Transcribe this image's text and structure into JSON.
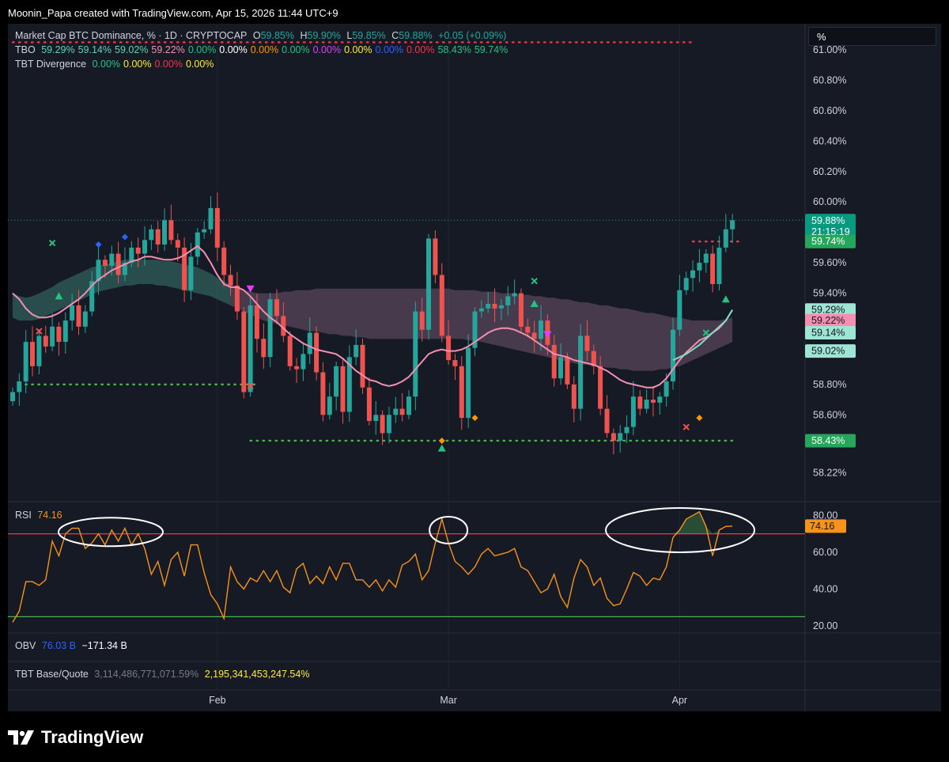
{
  "header": {
    "created_by": "Moonin_Papa created with TradingView.com, Apr 15, 2026 11:44 UTC+9"
  },
  "symbol_legend": {
    "name": "Market Cap BTC Dominance, % · 1D · CRYPTOCAP",
    "o_label": "O",
    "o_value": "59.85%",
    "h_label": "H",
    "h_value": "59.90%",
    "l_label": "L",
    "l_value": "59.85%",
    "c_label": "C",
    "c_value": "59.88%",
    "change": "+0.05 (+0.09%)"
  },
  "tbo_legend": {
    "name": "TBO",
    "values": [
      {
        "text": "59.29%",
        "color": "#5ed3b8"
      },
      {
        "text": "59.14%",
        "color": "#5ed3b8"
      },
      {
        "text": "59.02%",
        "color": "#5ed3b8"
      },
      {
        "text": "59.22%",
        "color": "#f48fb1"
      },
      {
        "text": "0.00%",
        "color": "#26c281"
      },
      {
        "text": "0.00%",
        "color": "#ffffff"
      },
      {
        "text": "0.00%",
        "color": "#ff9800"
      },
      {
        "text": "0.00%",
        "color": "#26c281"
      },
      {
        "text": "0.00%",
        "color": "#e040fb"
      },
      {
        "text": "0.00%",
        "color": "#ffeb3b"
      },
      {
        "text": "0.00%",
        "color": "#2962ff"
      },
      {
        "text": "0.00%",
        "color": "#f23645"
      },
      {
        "text": "58.43%",
        "color": "#26c281"
      },
      {
        "text": "59.74%",
        "color": "#26c281"
      }
    ]
  },
  "divergence_legend": {
    "name": "TBT Divergence",
    "values": [
      {
        "text": "0.00%",
        "color": "#26c281"
      },
      {
        "text": "0.00%",
        "color": "#ffeb3b"
      },
      {
        "text": "0.00%",
        "color": "#f23645"
      },
      {
        "text": "0.00%",
        "color": "#ffeb3b"
      }
    ]
  },
  "scale_mode_label": "%",
  "price_axis": {
    "ticks": [
      "61.00%",
      "60.80%",
      "60.60%",
      "60.40%",
      "60.20%",
      "60.00%",
      "59.60%",
      "59.40%",
      "58.80%",
      "58.60%",
      "58.22%"
    ],
    "tick_values": [
      61.0,
      60.8,
      60.6,
      60.4,
      60.2,
      60.0,
      59.6,
      59.4,
      58.8,
      58.6,
      58.22
    ],
    "badges": [
      {
        "text": "59.88%",
        "sub": "21:15:19",
        "value": 59.88,
        "bg": "#089981",
        "fg": "#ffffff"
      },
      {
        "text": "59.74%",
        "value": 59.74,
        "bg": "#26a65b",
        "fg": "#ffffff"
      },
      {
        "text": "59.29%",
        "value": 59.29,
        "bg": "#9ee6d3",
        "fg": "#131722"
      },
      {
        "text": "59.22%",
        "value": 59.22,
        "bg": "#f48fb1",
        "fg": "#131722"
      },
      {
        "text": "59.14%",
        "value": 59.14,
        "bg": "#9ee6d3",
        "fg": "#131722"
      },
      {
        "text": "59.02%",
        "value": 59.02,
        "bg": "#9ee6d3",
        "fg": "#131722"
      },
      {
        "text": "58.43%",
        "value": 58.43,
        "bg": "#26a65b",
        "fg": "#ffffff"
      }
    ]
  },
  "rsi_panel": {
    "name": "RSI",
    "value": "74.16",
    "ticks": [
      "80.00",
      "60.00",
      "40.00",
      "20.00"
    ],
    "tick_values": [
      80,
      60,
      40,
      20
    ],
    "badge": "74.16",
    "upper_band": 70,
    "lower_band": 25
  },
  "obv_panel": {
    "name": "OBV",
    "v1": "76.03 B",
    "v2": "−171.34 B"
  },
  "base_quote_panel": {
    "name": "TBT Base/Quote",
    "v1": "3,114,486,771,071.59%",
    "v2": "2,195,341,453,247.54%"
  },
  "time_axis": {
    "labels": [
      "Feb",
      "Mar",
      "Apr"
    ],
    "label_bar_index": [
      31,
      66,
      101
    ]
  },
  "brand": {
    "name": "TradingView"
  },
  "colors": {
    "up": "#26a69a",
    "down": "#ef5350",
    "bg": "#161a25",
    "rsi": "#f7931a",
    "pink_line": "#f48fb1",
    "teal_line": "#7be0c6"
  },
  "chart_data": [
    {
      "type": "candlestick",
      "title": "Market Cap BTC Dominance, % · 1D · CRYPTOCAP",
      "ylim": [
        58.05,
        61.12
      ],
      "closes": [
        58.75,
        58.82,
        59.08,
        58.92,
        59.12,
        59.05,
        59.18,
        59.08,
        59.22,
        59.32,
        59.18,
        59.28,
        59.48,
        59.62,
        59.58,
        59.66,
        59.52,
        59.6,
        59.7,
        59.66,
        59.75,
        59.82,
        59.72,
        59.88,
        59.75,
        59.7,
        59.42,
        59.64,
        59.8,
        59.82,
        59.96,
        59.7,
        59.52,
        59.45,
        59.28,
        58.75,
        59.32,
        59.1,
        58.98,
        59.36,
        59.25,
        59.12,
        58.92,
        58.9,
        59.0,
        59.14,
        58.88,
        58.6,
        58.72,
        58.92,
        58.62,
        58.98,
        59.06,
        58.78,
        58.56,
        58.6,
        58.48,
        58.6,
        58.64,
        58.6,
        58.72,
        59.28,
        59.16,
        59.76,
        59.52,
        59.12,
        58.96,
        58.92,
        58.58,
        59.04,
        59.28,
        59.3,
        59.33,
        59.3,
        59.32,
        59.38,
        59.4,
        59.18,
        59.14,
        59.1,
        59.22,
        59.06,
        58.84,
        58.98,
        58.8,
        58.64,
        59.12,
        59.02,
        58.92,
        58.64,
        58.48,
        58.43,
        58.48,
        58.52,
        58.72,
        58.64,
        58.7,
        58.68,
        58.72,
        58.82,
        59.16,
        59.42,
        59.5,
        59.55,
        59.6,
        59.66,
        59.46,
        59.7,
        59.82,
        59.88
      ],
      "ema_pink": [
        59.4,
        59.36,
        59.3,
        59.26,
        59.24,
        59.24,
        59.25,
        59.27,
        59.3,
        59.33,
        59.36,
        59.4,
        59.45,
        59.49,
        59.52,
        59.55,
        59.57,
        59.59,
        59.61,
        59.62,
        59.64,
        59.64,
        59.63,
        59.62,
        59.62,
        59.63,
        59.65,
        59.68,
        59.71,
        59.67,
        59.6,
        59.52,
        59.46,
        59.44,
        59.44,
        59.42,
        59.38,
        59.33,
        59.28,
        59.24,
        59.21,
        59.17,
        59.13,
        59.1,
        59.07,
        59.05,
        59.03,
        59.02,
        59.01,
        59.0,
        58.97,
        58.93,
        58.89,
        58.86,
        58.83,
        58.82,
        58.8,
        58.79,
        58.8,
        58.82,
        58.85,
        58.9,
        58.95,
        59.0,
        59.02,
        59.03,
        59.02,
        59.02,
        59.03,
        59.05,
        59.08,
        59.11,
        59.14,
        59.16,
        59.17,
        59.17,
        59.16,
        59.14,
        59.12,
        59.09,
        59.06,
        59.03,
        59.0,
        58.99,
        58.98,
        58.96,
        58.95,
        58.94,
        58.93,
        58.91,
        58.89,
        58.86,
        58.83,
        58.81,
        58.8,
        58.79,
        58.78,
        58.78,
        58.8,
        58.84,
        58.9,
        58.96,
        59.01,
        59.05,
        59.09,
        59.11,
        59.14,
        59.17,
        59.22,
        59.29
      ],
      "band_upper": [
        59.4,
        59.38,
        59.37,
        59.38,
        59.4,
        59.42,
        59.44,
        59.47,
        59.49,
        59.51,
        59.53,
        59.55,
        59.57,
        59.58,
        59.59,
        59.6,
        59.61,
        59.62,
        59.62,
        59.62,
        59.62,
        59.62,
        59.62,
        59.61,
        59.61,
        59.6,
        59.59,
        59.58,
        59.57,
        59.55,
        59.53,
        59.5,
        59.48,
        59.45,
        59.43,
        59.42,
        59.41,
        59.4,
        59.4,
        59.4,
        59.4,
        59.41,
        59.41,
        59.42,
        59.42,
        59.42,
        59.43,
        59.43,
        59.43,
        59.43,
        59.43,
        59.43,
        59.43,
        59.43,
        59.43,
        59.43,
        59.43,
        59.43,
        59.43,
        59.43,
        59.43,
        59.43,
        59.43,
        59.43,
        59.43,
        59.43,
        59.43,
        59.42,
        59.42,
        59.42,
        59.42,
        59.41,
        59.41,
        59.41,
        59.4,
        59.4,
        59.4,
        59.39,
        59.39,
        59.38,
        59.38,
        59.37,
        59.37,
        59.36,
        59.36,
        59.35,
        59.34,
        59.34,
        59.33,
        59.32,
        59.32,
        59.31,
        59.3,
        59.3,
        59.29,
        59.28,
        59.27,
        59.27,
        59.26,
        59.25,
        59.24,
        59.24,
        59.23,
        59.22,
        59.22,
        59.22,
        59.22,
        59.22,
        59.23,
        59.24
      ],
      "band_lower": [
        59.24,
        59.22,
        59.22,
        59.22,
        59.23,
        59.25,
        59.27,
        59.29,
        59.31,
        59.33,
        59.35,
        59.37,
        59.39,
        59.41,
        59.42,
        59.43,
        59.44,
        59.45,
        59.45,
        59.46,
        59.46,
        59.46,
        59.45,
        59.45,
        59.44,
        59.43,
        59.42,
        59.41,
        59.4,
        59.39,
        59.38,
        59.36,
        59.34,
        59.32,
        59.3,
        59.28,
        59.26,
        59.24,
        59.22,
        59.21,
        59.2,
        59.19,
        59.18,
        59.17,
        59.16,
        59.15,
        59.15,
        59.14,
        59.13,
        59.13,
        59.12,
        59.12,
        59.11,
        59.11,
        59.1,
        59.1,
        59.1,
        59.1,
        59.1,
        59.1,
        59.1,
        59.1,
        59.1,
        59.1,
        59.1,
        59.1,
        59.1,
        59.1,
        59.1,
        59.09,
        59.09,
        59.08,
        59.07,
        59.06,
        59.05,
        59.04,
        59.03,
        59.02,
        59.01,
        59.0,
        58.99,
        58.98,
        58.97,
        58.96,
        58.95,
        58.94,
        58.93,
        58.93,
        58.92,
        58.92,
        58.91,
        58.91,
        58.9,
        58.9,
        58.89,
        58.89,
        58.89,
        58.89,
        58.9,
        58.9,
        58.91,
        58.92,
        58.94,
        58.96,
        58.98,
        59.0,
        59.02,
        59.04,
        59.06,
        59.08
      ],
      "teal_line_tail": [
        58.96,
        58.98,
        59.0,
        59.03,
        59.06,
        59.1,
        59.14,
        59.18,
        59.22,
        59.29
      ],
      "support_dots": [
        {
          "value": 58.8,
          "from": 1,
          "to": 37
        },
        {
          "value": 58.43,
          "from": 36,
          "to": 109
        }
      ],
      "resistance_dots": [
        {
          "value": 61.05,
          "from": 0,
          "to": 103
        },
        {
          "value": 59.74,
          "from": 103,
          "to": 110
        }
      ],
      "signals": [
        {
          "i": 7,
          "value": 59.38,
          "kind": "up-triangle",
          "color": "#26c281"
        },
        {
          "i": 6,
          "value": 59.73,
          "kind": "x",
          "color": "#26c281"
        },
        {
          "i": 4,
          "value": 59.15,
          "kind": "x",
          "color": "#ef5350"
        },
        {
          "i": 13,
          "value": 59.72,
          "kind": "diamond",
          "color": "#2962ff"
        },
        {
          "i": 17,
          "value": 59.77,
          "kind": "diamond",
          "color": "#2962ff"
        },
        {
          "i": 36,
          "value": 59.43,
          "kind": "down-triangle",
          "color": "#e040fb"
        },
        {
          "i": 36,
          "value": 58.79,
          "kind": "x",
          "color": "#ef5350"
        },
        {
          "i": 65,
          "value": 58.38,
          "kind": "up-triangle",
          "color": "#26c281"
        },
        {
          "i": 65,
          "value": 58.43,
          "kind": "diamond",
          "color": "#ff9800"
        },
        {
          "i": 70,
          "value": 58.58,
          "kind": "diamond",
          "color": "#ff9800"
        },
        {
          "i": 79,
          "value": 59.33,
          "kind": "up-triangle",
          "color": "#26c281"
        },
        {
          "i": 79,
          "value": 59.48,
          "kind": "x",
          "color": "#26c281"
        },
        {
          "i": 81,
          "value": 59.13,
          "kind": "down-triangle",
          "color": "#e040fb"
        },
        {
          "i": 102,
          "value": 58.52,
          "kind": "x",
          "color": "#ef5350"
        },
        {
          "i": 104,
          "value": 58.58,
          "kind": "diamond",
          "color": "#ff9800"
        },
        {
          "i": 105,
          "value": 59.14,
          "kind": "x",
          "color": "#26c281"
        },
        {
          "i": 108,
          "value": 59.36,
          "kind": "up-triangle",
          "color": "#26c281"
        }
      ]
    },
    {
      "type": "line",
      "title": "RSI",
      "ylim": [
        17,
        84
      ],
      "values": [
        22,
        28,
        44,
        44,
        42,
        45,
        66,
        58,
        70,
        73,
        73,
        62,
        65,
        70,
        64,
        72,
        66,
        73,
        64,
        70,
        62,
        48,
        55,
        42,
        56,
        60,
        47,
        64,
        64,
        49,
        37,
        32,
        24,
        52,
        44,
        40,
        46,
        44,
        50,
        44,
        50,
        41,
        38,
        51,
        54,
        43,
        47,
        43,
        52,
        45,
        54,
        54,
        45,
        45,
        41,
        45,
        39,
        45,
        41,
        53,
        55,
        59,
        45,
        50,
        65,
        78,
        65,
        55,
        52,
        48,
        52,
        59,
        62,
        58,
        59,
        60,
        62,
        52,
        50,
        44,
        38,
        40,
        48,
        36,
        30,
        46,
        56,
        52,
        42,
        46,
        35,
        31,
        32,
        40,
        49,
        47,
        42,
        46,
        45,
        52,
        68,
        72,
        78,
        80,
        82,
        74,
        58,
        72,
        74,
        74.16
      ],
      "bands": [
        70,
        25
      ]
    }
  ]
}
